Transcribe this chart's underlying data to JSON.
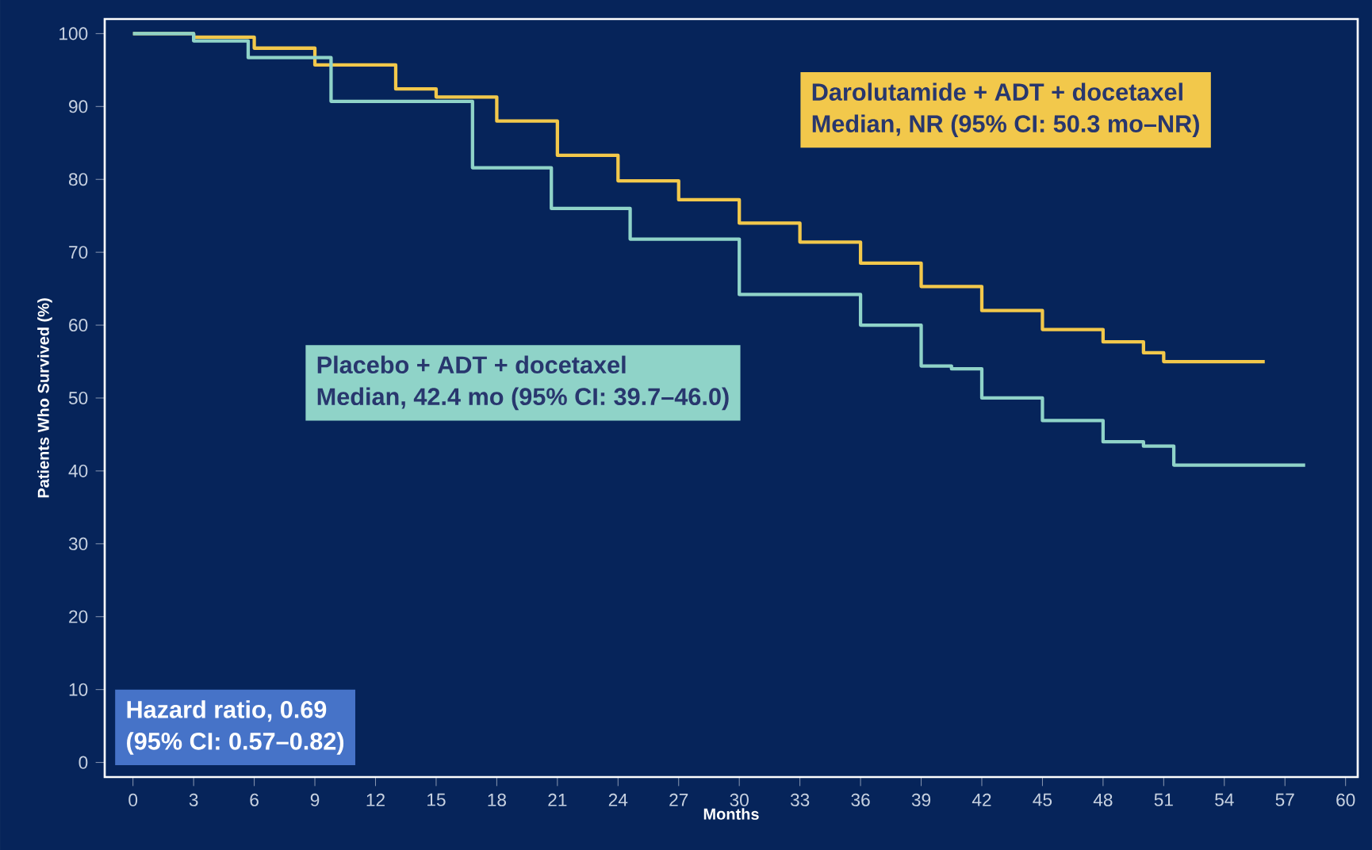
{
  "chart_data": {
    "type": "step",
    "xlabel": "Months",
    "ylabel": "Patients Who Survived (%)",
    "series": [
      {
        "name": "Darolutamide + ADT + docetaxel",
        "color": "#f2c84b",
        "x": [
          0,
          3,
          6,
          9,
          13,
          15,
          18,
          21,
          24,
          27,
          30,
          33,
          36,
          39,
          42,
          45,
          48,
          50,
          51,
          56
        ],
        "values": [
          100,
          99.5,
          98,
          95.7,
          92.4,
          91.3,
          88,
          83.3,
          79.8,
          77.2,
          74,
          71.4,
          68.5,
          65.3,
          62,
          59.4,
          57.7,
          56.2,
          55,
          55
        ]
      },
      {
        "name": "Placebo + ADT + docetaxel",
        "color": "#8fd3c8",
        "x": [
          0,
          3,
          5.7,
          9.8,
          16.8,
          20.7,
          24.6,
          30,
          36,
          39,
          40.5,
          42,
          45,
          48,
          50,
          51.5,
          58
        ],
        "values": [
          100,
          99,
          96.7,
          90.7,
          81.6,
          76,
          71.8,
          64.2,
          60,
          54.4,
          54,
          50,
          46.9,
          44,
          43.4,
          40.8,
          40.8
        ]
      }
    ],
    "annotations": [
      "Median, NR (95% CI: 50.3 mo–NR)",
      "Median, 42.4 mo (95% CI: 39.7–46.0)",
      "Hazard ratio, 0.69",
      "(95% CI: 0.57–0.82)"
    ],
    "xlim": [
      -1.4,
      60.6
    ],
    "ylim": [
      -2,
      102
    ],
    "xticks": [
      0,
      3,
      6,
      9,
      12,
      15,
      18,
      21,
      24,
      27,
      30,
      33,
      36,
      39,
      42,
      45,
      48,
      51,
      54,
      57,
      60
    ],
    "yticks": [
      0,
      10,
      20,
      30,
      40,
      50,
      60,
      70,
      80,
      90,
      100
    ],
    "grid": false,
    "legend": false,
    "marker": "none",
    "line_style": "solid"
  }
}
